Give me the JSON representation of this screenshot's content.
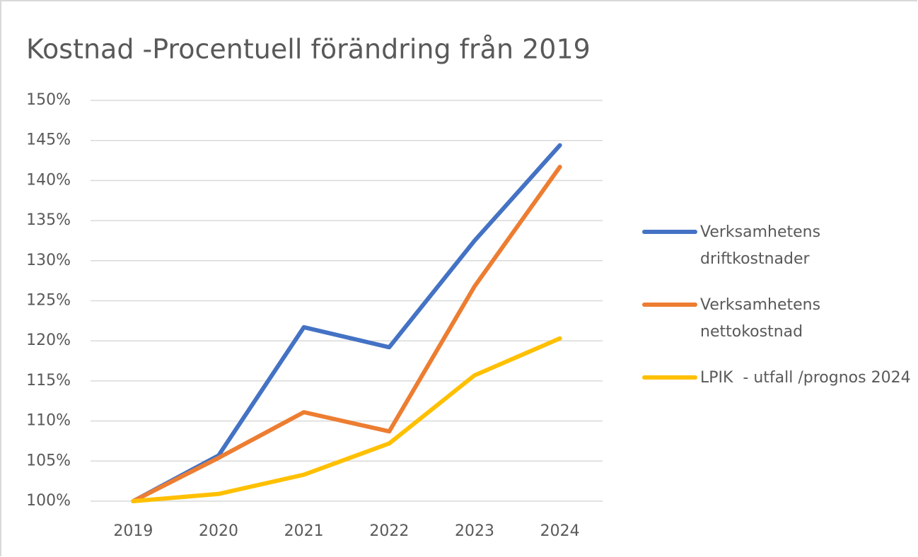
{
  "chart_data": {
    "type": "line",
    "title": "Kostnad -Procentuell förändring från 2019",
    "categories": [
      "2019",
      "2020",
      "2021",
      "2022",
      "2023",
      "2024"
    ],
    "series": [
      {
        "name": "Verksamhetens driftkostnader",
        "color": "#4472c4",
        "values": [
          100,
          105.7,
          121.7,
          119.2,
          132.5,
          144.4
        ]
      },
      {
        "name": "Verksamhetens nettokostnad",
        "color": "#ed7d31",
        "values": [
          100,
          105.4,
          111.1,
          108.7,
          126.8,
          141.7
        ]
      },
      {
        "name": "LPIK  - utfall /prognos 2024",
        "color": "#ffc000",
        "values": [
          100,
          100.9,
          103.3,
          107.2,
          115.7,
          120.3
        ]
      }
    ],
    "ylim": [
      100,
      150
    ],
    "yticks": [
      {
        "value": 100,
        "label": "100%"
      },
      {
        "value": 105,
        "label": "105%"
      },
      {
        "value": 110,
        "label": "110%"
      },
      {
        "value": 115,
        "label": "115%"
      },
      {
        "value": 120,
        "label": "120%"
      },
      {
        "value": 125,
        "label": "125%"
      },
      {
        "value": 130,
        "label": "130%"
      },
      {
        "value": 135,
        "label": "135%"
      },
      {
        "value": 140,
        "label": "140%"
      },
      {
        "value": 145,
        "label": "145%"
      },
      {
        "value": 150,
        "label": "150%"
      }
    ],
    "grid": true,
    "legend": "right"
  }
}
